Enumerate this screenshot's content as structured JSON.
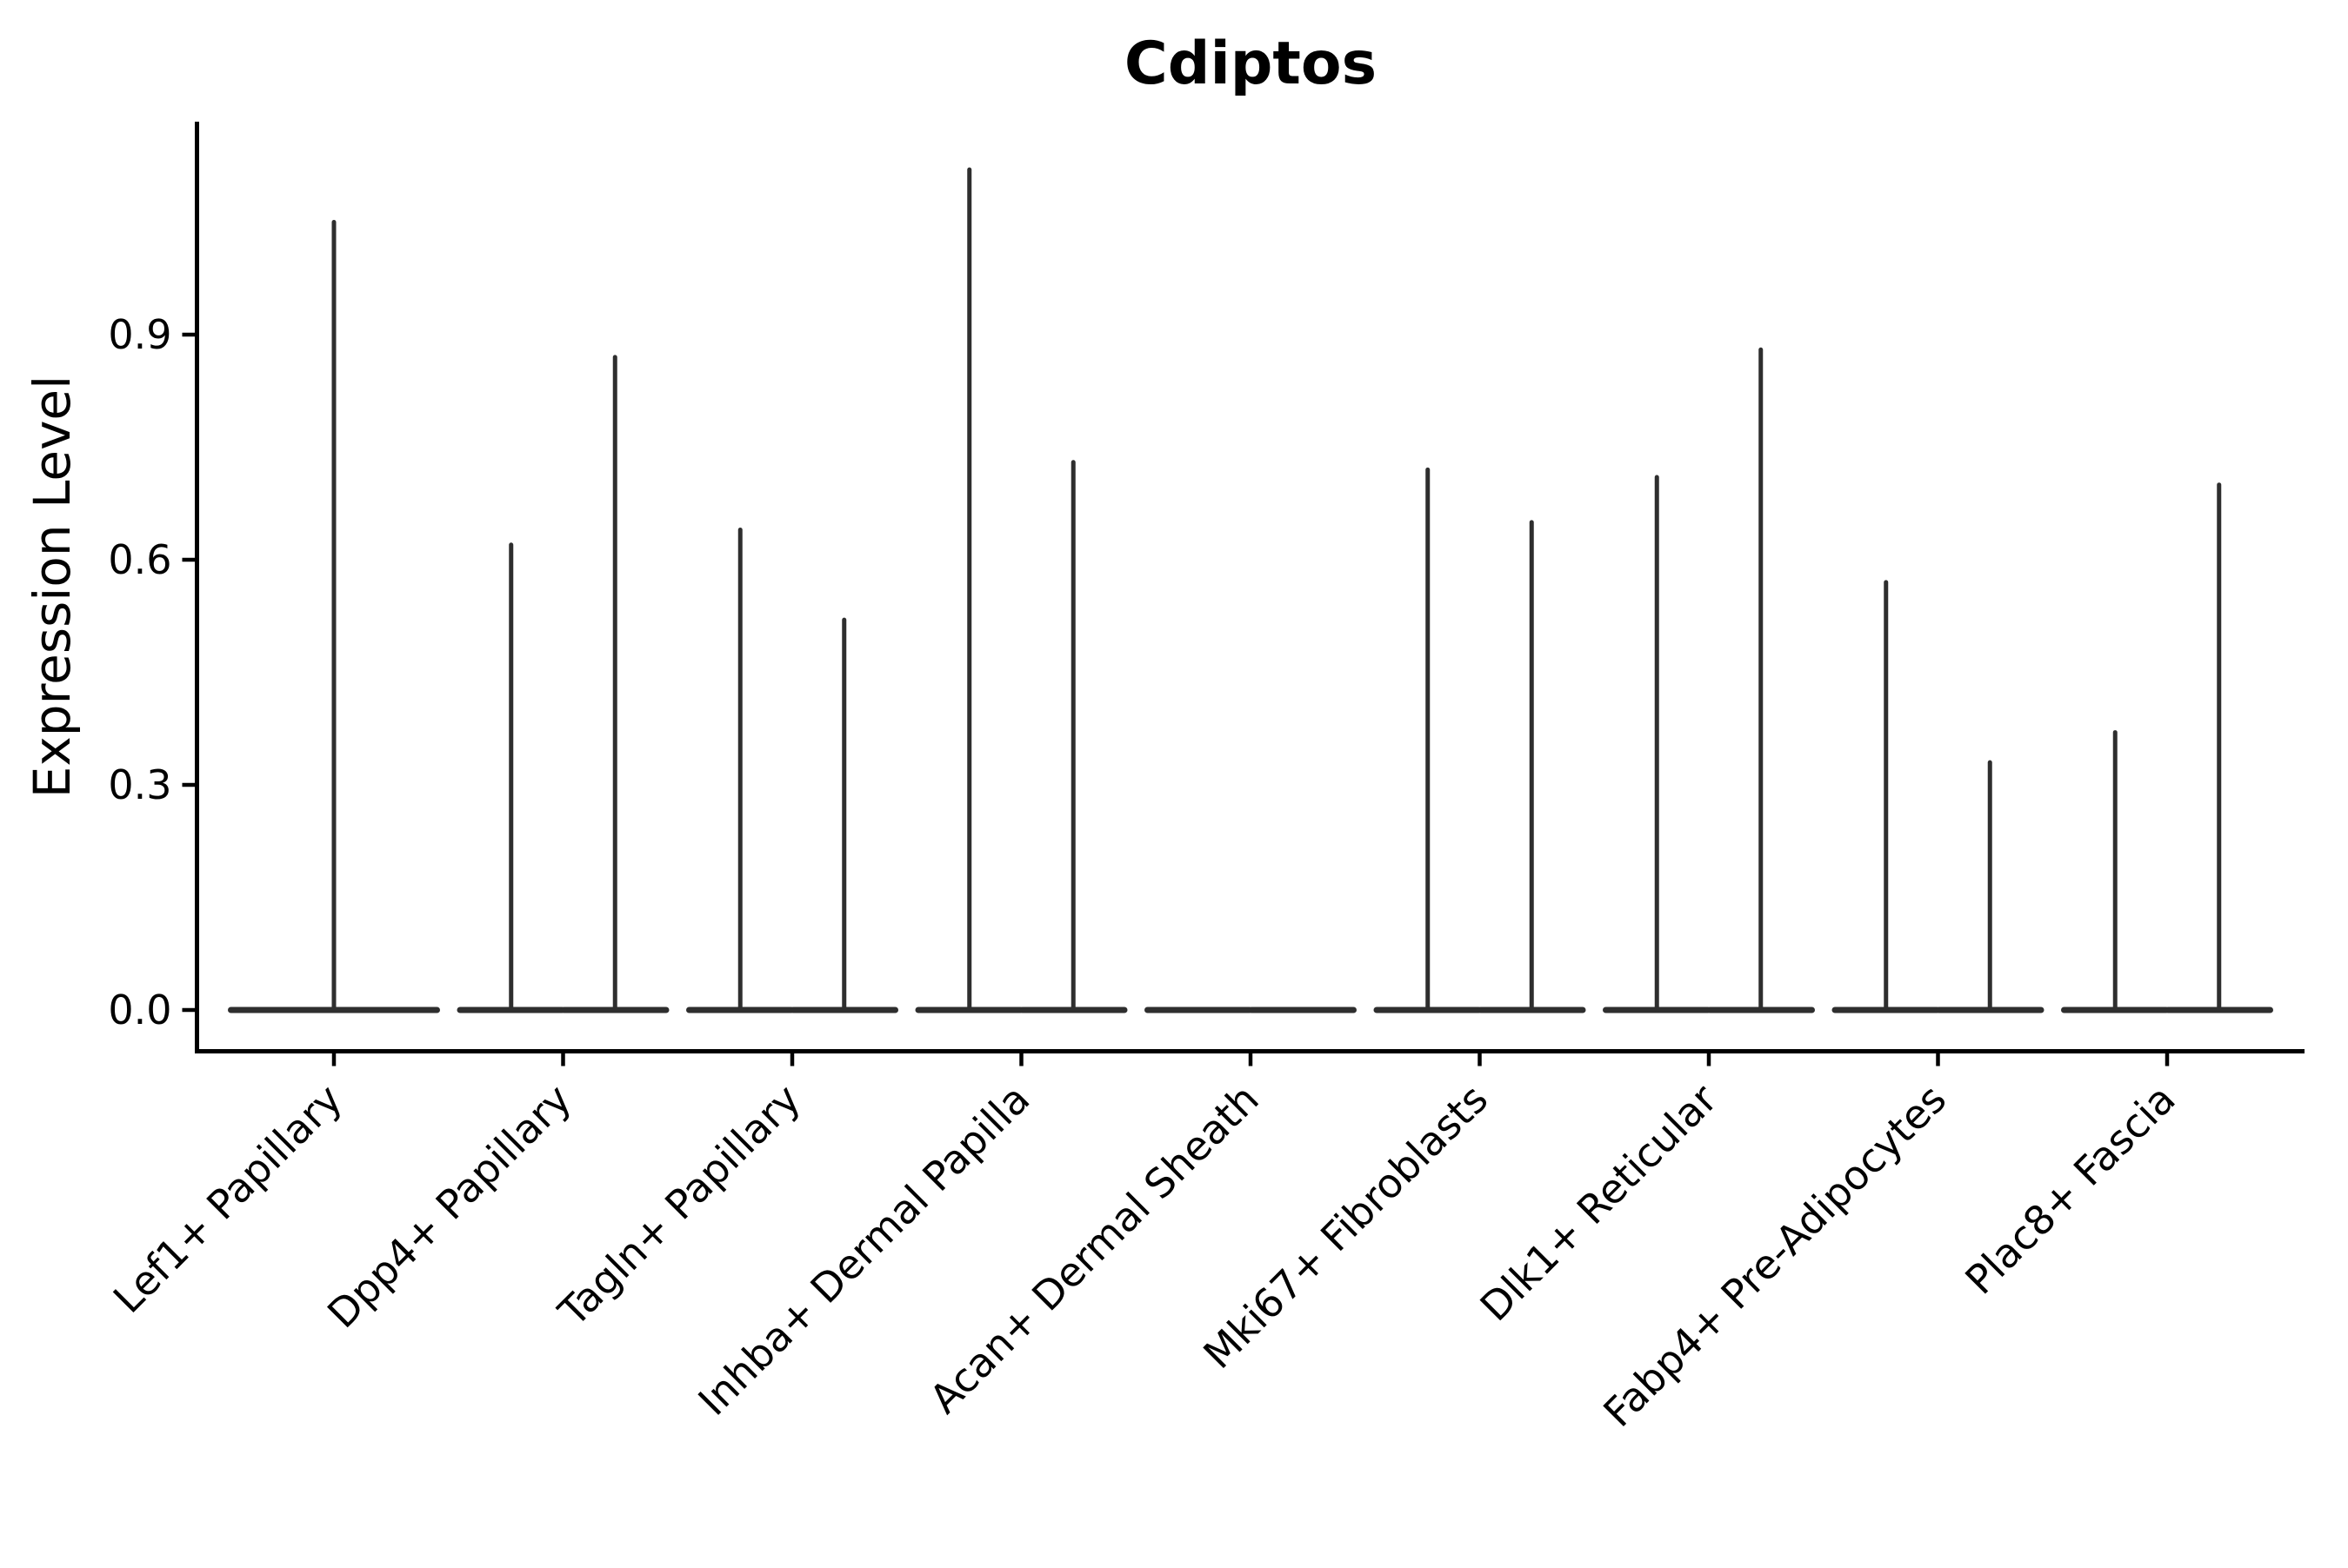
{
  "chart_data": {
    "type": "violin",
    "title": "Cdiptos",
    "ylabel": "Expression Level",
    "xlabel": "",
    "yticks": [
      "0.0",
      "0.3",
      "0.6",
      "0.9"
    ],
    "ytick_values": [
      0.0,
      0.3,
      0.6,
      0.9
    ],
    "ylim": [
      0.0,
      1.18
    ],
    "grid": false,
    "legend_position": "none",
    "x_labels_rotation_deg": 45,
    "description": "Each violin's density mass sits at expression 0 (flat horizontal base) with a thin vertical spike reaching the maximum expression value. Most categories contain two side-by-side half-width violins (split groups); Lef1+ Papillary has a single full-width violin; Acan+ Dermal Sheath has only flat zero baselines.",
    "categories": [
      "Lef1+ Papillary",
      "Dpp4+ Papillary",
      "Tagln+ Papillary",
      "Inhba+ Dermal Papilla",
      "Acan+ Dermal Sheath",
      "Mki67+ Fibroblasts",
      "Dlk1+ Reticular",
      "Fabp4+ Pre-Adipocytes",
      "Plac8+ Fascia"
    ],
    "violins": [
      {
        "category": "Lef1+ Papillary",
        "split": false,
        "max_values": [
          1.05
        ]
      },
      {
        "category": "Dpp4+ Papillary",
        "split": true,
        "max_values": [
          0.62,
          0.87
        ]
      },
      {
        "category": "Tagln+ Papillary",
        "split": true,
        "max_values": [
          0.64,
          0.52
        ]
      },
      {
        "category": "Inhba+ Dermal Papilla",
        "split": true,
        "max_values": [
          1.12,
          0.73
        ]
      },
      {
        "category": "Acan+ Dermal Sheath",
        "split": true,
        "max_values": [
          0.0,
          0.0
        ]
      },
      {
        "category": "Mki67+ Fibroblasts",
        "split": true,
        "max_values": [
          0.72,
          0.65
        ]
      },
      {
        "category": "Dlk1+ Reticular",
        "split": true,
        "max_values": [
          0.71,
          0.88
        ]
      },
      {
        "category": "Fabp4+ Pre-Adipocytes",
        "split": true,
        "max_values": [
          0.57,
          0.33
        ]
      },
      {
        "category": "Plac8+ Fascia",
        "split": true,
        "max_values": [
          0.37,
          0.7
        ]
      }
    ],
    "colors": {
      "violin_stroke": "#2e2e2e",
      "axis": "#000000",
      "text": "#000000",
      "background": "#ffffff"
    }
  }
}
